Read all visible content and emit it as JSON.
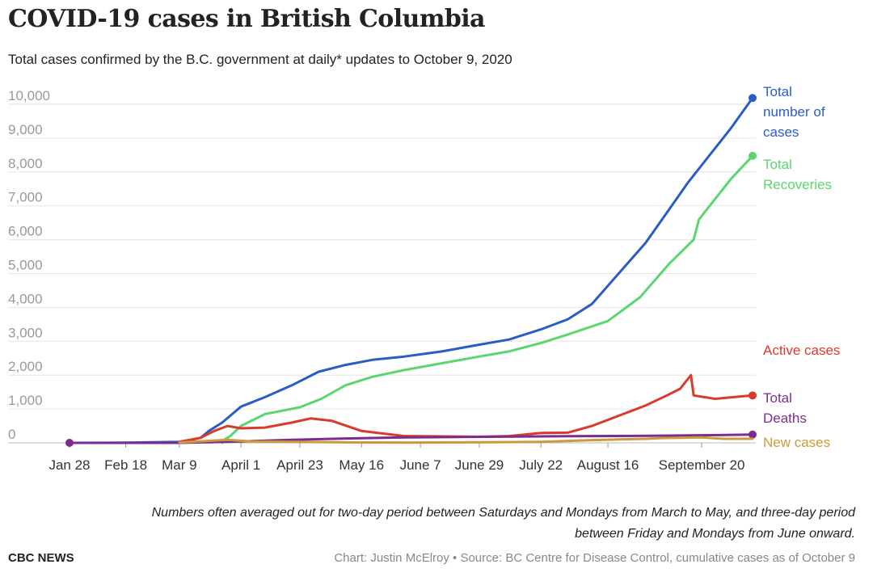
{
  "header": {
    "title": "COVID-19 cases in British Columbia",
    "subtitle": "Total cases confirmed by the B.C. government at daily* updates to October 9, 2020"
  },
  "footer": {
    "note_line1": "Numbers often averaged out for two-day period between Saturdays and Mondays from March to May, and three-day period",
    "note_line2": "between Friday and Mondays from June onward.",
    "brand": "CBC NEWS",
    "credit": "Chart: Justin McElroy • Source: BC Centre for Disease Control, cumulative cases as of October 9"
  },
  "chart_data": {
    "type": "line",
    "title": "COVID-19 cases in British Columbia",
    "xlabel": "",
    "ylabel": "",
    "ylim": [
      0,
      10000
    ],
    "y_ticks": [
      0,
      1000,
      2000,
      3000,
      4000,
      5000,
      6000,
      7000,
      8000,
      9000,
      10000
    ],
    "y_tick_labels": [
      "0",
      "1,000",
      "2,000",
      "3,000",
      "4,000",
      "5,000",
      "6,000",
      "7,000",
      "8,000",
      "9,000",
      "10,000"
    ],
    "xlim": [
      "2020-01-28",
      "2020-10-09"
    ],
    "x_ticks": [
      "2020-01-28",
      "2020-02-18",
      "2020-03-09",
      "2020-04-01",
      "2020-04-23",
      "2020-05-16",
      "2020-06-07",
      "2020-06-29",
      "2020-07-22",
      "2020-08-16",
      "2020-09-20"
    ],
    "x_tick_labels": [
      "Jan 28",
      "Feb 18",
      "Mar 9",
      "April 1",
      "April 23",
      "May 16",
      "June 7",
      "June 29",
      "July 22",
      "August 16",
      "September 20"
    ],
    "grid": "horizontal",
    "legend": "inline-right",
    "series": [
      {
        "name": "Total number of cases",
        "label_lines": [
          "Total",
          "number of",
          "cases"
        ],
        "color": "#2a5cc6",
        "end_marker": true,
        "points": [
          [
            "2020-01-28",
            1
          ],
          [
            "2020-02-18",
            5
          ],
          [
            "2020-03-09",
            32
          ],
          [
            "2020-03-13",
            80
          ],
          [
            "2020-03-17",
            150
          ],
          [
            "2020-03-20",
            350
          ],
          [
            "2020-03-25",
            600
          ],
          [
            "2020-04-01",
            1070
          ],
          [
            "2020-04-10",
            1350
          ],
          [
            "2020-04-20",
            1700
          ],
          [
            "2020-04-30",
            2100
          ],
          [
            "2020-05-10",
            2300
          ],
          [
            "2020-05-20",
            2450
          ],
          [
            "2020-06-01",
            2550
          ],
          [
            "2020-06-15",
            2700
          ],
          [
            "2020-06-29",
            2900
          ],
          [
            "2020-07-10",
            3050
          ],
          [
            "2020-07-22",
            3350
          ],
          [
            "2020-08-01",
            3650
          ],
          [
            "2020-08-10",
            4100
          ],
          [
            "2020-08-20",
            5000
          ],
          [
            "2020-08-30",
            5900
          ],
          [
            "2020-09-07",
            6800
          ],
          [
            "2020-09-15",
            7700
          ],
          [
            "2020-09-22",
            8400
          ],
          [
            "2020-10-01",
            9300
          ],
          [
            "2020-10-09",
            10185
          ]
        ]
      },
      {
        "name": "Total Recoveries",
        "label_lines": [
          "Total",
          "Recoveries"
        ],
        "color": "#5bd66f",
        "end_marker": true,
        "points": [
          [
            "2020-03-25",
            0
          ],
          [
            "2020-03-26",
            100
          ],
          [
            "2020-03-28",
            200
          ],
          [
            "2020-04-01",
            500
          ],
          [
            "2020-04-10",
            850
          ],
          [
            "2020-04-23",
            1050
          ],
          [
            "2020-05-01",
            1300
          ],
          [
            "2020-05-10",
            1700
          ],
          [
            "2020-05-20",
            1950
          ],
          [
            "2020-06-01",
            2150
          ],
          [
            "2020-06-15",
            2350
          ],
          [
            "2020-06-29",
            2550
          ],
          [
            "2020-07-10",
            2700
          ],
          [
            "2020-07-22",
            2950
          ],
          [
            "2020-08-01",
            3200
          ],
          [
            "2020-08-16",
            3600
          ],
          [
            "2020-08-28",
            4300
          ],
          [
            "2020-09-08",
            5300
          ],
          [
            "2020-09-17",
            6000
          ],
          [
            "2020-09-19",
            6600
          ],
          [
            "2020-09-25",
            7200
          ],
          [
            "2020-10-01",
            7800
          ],
          [
            "2020-10-09",
            8475
          ]
        ]
      },
      {
        "name": "Active cases",
        "label_lines": [
          "Active cases"
        ],
        "color": "#d93a2b",
        "end_marker": true,
        "points": [
          [
            "2020-03-09",
            30
          ],
          [
            "2020-03-17",
            150
          ],
          [
            "2020-03-22",
            350
          ],
          [
            "2020-03-27",
            500
          ],
          [
            "2020-04-01",
            430
          ],
          [
            "2020-04-10",
            450
          ],
          [
            "2020-04-20",
            600
          ],
          [
            "2020-04-27",
            720
          ],
          [
            "2020-05-05",
            650
          ],
          [
            "2020-05-16",
            350
          ],
          [
            "2020-06-01",
            200
          ],
          [
            "2020-06-29",
            180
          ],
          [
            "2020-07-10",
            200
          ],
          [
            "2020-07-22",
            290
          ],
          [
            "2020-08-01",
            300
          ],
          [
            "2020-08-10",
            500
          ],
          [
            "2020-08-20",
            800
          ],
          [
            "2020-08-30",
            1100
          ],
          [
            "2020-09-07",
            1400
          ],
          [
            "2020-09-12",
            1600
          ],
          [
            "2020-09-16",
            2000
          ],
          [
            "2020-09-17",
            1400
          ],
          [
            "2020-09-25",
            1300
          ],
          [
            "2020-10-09",
            1400
          ]
        ]
      },
      {
        "name": "Total Deaths",
        "label_lines": [
          "Total",
          "Deaths"
        ],
        "color": "#7b2d8f",
        "end_marker": true,
        "start_marker": true,
        "points": [
          [
            "2020-01-28",
            0
          ],
          [
            "2020-03-09",
            1
          ],
          [
            "2020-03-20",
            20
          ],
          [
            "2020-04-01",
            43
          ],
          [
            "2020-04-20",
            90
          ],
          [
            "2020-05-10",
            130
          ],
          [
            "2020-06-01",
            160
          ],
          [
            "2020-07-01",
            180
          ],
          [
            "2020-08-01",
            195
          ],
          [
            "2020-09-01",
            210
          ],
          [
            "2020-09-20",
            225
          ],
          [
            "2020-10-09",
            244
          ]
        ]
      },
      {
        "name": "New cases",
        "label_lines": [
          "New cases"
        ],
        "color": "#cc9a3c",
        "end_marker": false,
        "points": [
          [
            "2020-03-09",
            10
          ],
          [
            "2020-03-20",
            60
          ],
          [
            "2020-03-27",
            90
          ],
          [
            "2020-04-05",
            40
          ],
          [
            "2020-04-20",
            30
          ],
          [
            "2020-05-10",
            15
          ],
          [
            "2020-06-01",
            10
          ],
          [
            "2020-07-01",
            20
          ],
          [
            "2020-07-22",
            30
          ],
          [
            "2020-08-10",
            80
          ],
          [
            "2020-08-20",
            100
          ],
          [
            "2020-08-30",
            120
          ],
          [
            "2020-09-05",
            140
          ],
          [
            "2020-09-12",
            150
          ],
          [
            "2020-09-20",
            160
          ],
          [
            "2020-09-28",
            120
          ],
          [
            "2020-10-09",
            120
          ]
        ]
      }
    ]
  }
}
